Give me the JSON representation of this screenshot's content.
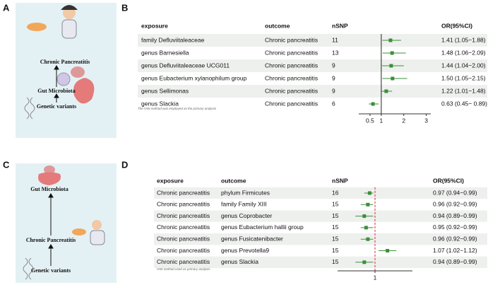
{
  "diagram_a": {
    "label": "A",
    "steps": [
      "Chronic Pancreatitis",
      "Gut Microbiota",
      "Genetic variants"
    ]
  },
  "diagram_c": {
    "label": "C",
    "steps": [
      "Gut Microbiota",
      "Chronic Pancreatitis",
      "Genetic variants"
    ]
  },
  "chart_data": [
    {
      "type": "forest",
      "label": "B",
      "columns": [
        "exposure",
        "outcome",
        "nSNP",
        "OR(95%CI)"
      ],
      "exposure": [
        "family Defluviitaleaceae",
        "genus Barnesiella",
        "genus Defluviitaleaceae UCG011",
        "genus Eubacterium xylanophilum group",
        "genus Sellimonas",
        "genus Slackia"
      ],
      "outcome": [
        "Chronic pancreatitis",
        "Chronic pancreatitis",
        "Chronic pancreatitis",
        "Chronic pancreatitis",
        "Chronic pancreatitis",
        "Chronic pancreatitis"
      ],
      "nsnp": [
        11,
        13,
        9,
        9,
        9,
        6
      ],
      "values": [
        1.41,
        1.48,
        1.44,
        1.5,
        1.22,
        0.63
      ],
      "lower": [
        1.05,
        1.06,
        1.04,
        1.05,
        1.01,
        0.45
      ],
      "upper": [
        1.88,
        2.09,
        2.0,
        2.15,
        1.48,
        0.89
      ],
      "value_labels": [
        "1.41 (1.05−1.88)",
        "1.48 (1.06−2.09)",
        "1.44 (1.04−2.00)",
        "1.50 (1.05−2.15)",
        "1.22 (1.01−1.48)",
        "0.63 (0.45− 0.89)"
      ],
      "xlim": [
        0,
        3.2
      ],
      "xticks": [
        0.5,
        1,
        2,
        3
      ],
      "reference": 1,
      "reference_color": "#222222",
      "reference_dashed": false,
      "color": "#3b8f3b",
      "striped": true,
      "note": "The IVW method was employed as the primary analysis"
    },
    {
      "type": "forest",
      "label": "D",
      "columns": [
        "exposure",
        "outcome",
        "nSNP",
        "OR(95%CI)"
      ],
      "exposure": [
        "Chronic pancreatitis",
        "Chronic pancreatitis",
        "Chronic pancreatitis",
        "Chronic pancreatitis",
        "Chronic pancreatitis",
        "Chronic pancreatitis",
        "Chronic pancreatitis"
      ],
      "outcome": [
        "phylum Firmicutes",
        "family Family XIII",
        "genus Coprobacter",
        "genus Eubacterium hallii group",
        "genus Fusicatenibacter",
        "genus Prevotella9",
        "genus Slackia"
      ],
      "nsnp": [
        16,
        15,
        15,
        15,
        15,
        15,
        15
      ],
      "values": [
        0.97,
        0.96,
        0.94,
        0.95,
        0.96,
        1.07,
        0.94
      ],
      "lower": [
        0.94,
        0.92,
        0.89,
        0.92,
        0.92,
        1.02,
        0.89
      ],
      "upper": [
        0.99,
        0.99,
        0.99,
        0.99,
        0.99,
        1.12,
        0.99
      ],
      "value_labels": [
        "0.97 (0.94−0.99)",
        "0.96 (0.92−0.99)",
        "0.94 (0.89−0.99)",
        "0.95 (0.92−0.99)",
        "0.96 (0.92−0.99)",
        "1.07 (1.02−1.12)",
        "0.94 (0.89−0.99)"
      ],
      "xlim": [
        0.79,
        1.21
      ],
      "xticks": [
        1
      ],
      "reference": 1,
      "reference_color": "#d62828",
      "reference_dashed": true,
      "color": "#3b8f3b",
      "striped": true,
      "note": "IVW method used as primary analysis"
    }
  ]
}
